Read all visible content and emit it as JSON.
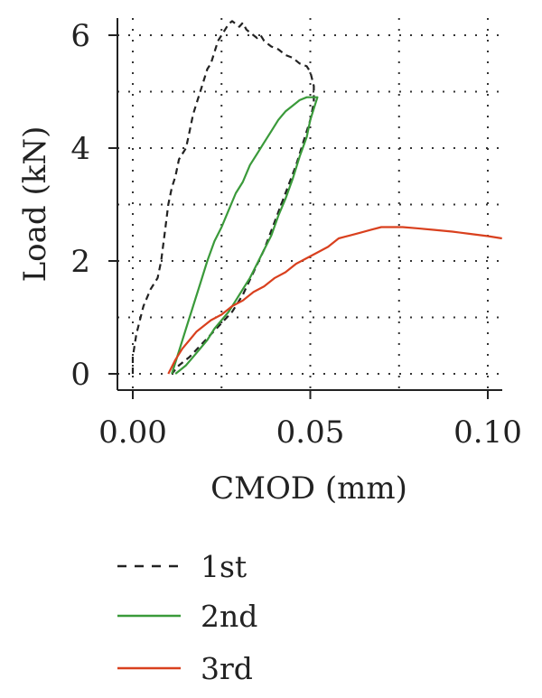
{
  "chart_data": {
    "type": "line",
    "xlabel": "CMOD (mm)",
    "ylabel": "Load (kN)",
    "xlim": [
      -0.004,
      0.104
    ],
    "ylim": [
      -0.3,
      6.3
    ],
    "x_ticks": [
      0.0,
      0.05,
      0.1
    ],
    "x_tick_labels": [
      "0.00",
      "0.05",
      "0.10"
    ],
    "y_ticks": [
      0,
      2,
      4,
      6
    ],
    "y_tick_labels": [
      "0",
      "2",
      "4",
      "6"
    ],
    "grid": "dotted",
    "legend_position": "below",
    "series": [
      {
        "name": "1st",
        "color": "#222222",
        "style": "dashed",
        "x": [
          0.0,
          0.0,
          0.001,
          0.003,
          0.005,
          0.007,
          0.008,
          0.009,
          0.01,
          0.011,
          0.012,
          0.013,
          0.015,
          0.016,
          0.017,
          0.018,
          0.019,
          0.02,
          0.021,
          0.022,
          0.023,
          0.024,
          0.026,
          0.027,
          0.028,
          0.029,
          0.03,
          0.031,
          0.032,
          0.033,
          0.034,
          0.035,
          0.036,
          0.037,
          0.038,
          0.039,
          0.041,
          0.043,
          0.045,
          0.047,
          0.049,
          0.05,
          0.051,
          0.051,
          0.05,
          0.048,
          0.046,
          0.043,
          0.04,
          0.037,
          0.034,
          0.031,
          0.028,
          0.025,
          0.022,
          0.019,
          0.016,
          0.013,
          0.011
        ],
        "y": [
          0.0,
          0.3,
          0.7,
          1.2,
          1.5,
          1.7,
          2.0,
          2.5,
          3.0,
          3.3,
          3.5,
          3.8,
          4.0,
          4.3,
          4.6,
          4.8,
          5.0,
          5.2,
          5.4,
          5.5,
          5.7,
          5.9,
          6.1,
          6.2,
          6.25,
          6.2,
          6.15,
          6.22,
          6.1,
          6.05,
          6.0,
          5.95,
          6.0,
          5.9,
          5.85,
          5.8,
          5.75,
          5.65,
          5.6,
          5.5,
          5.45,
          5.35,
          5.1,
          4.8,
          4.5,
          4.1,
          3.7,
          3.2,
          2.7,
          2.2,
          1.8,
          1.4,
          1.1,
          0.9,
          0.7,
          0.5,
          0.3,
          0.15,
          0.0
        ]
      },
      {
        "name": "2nd",
        "color": "#3a9a3a",
        "style": "solid",
        "x": [
          0.011,
          0.013,
          0.015,
          0.017,
          0.019,
          0.021,
          0.023,
          0.025,
          0.027,
          0.029,
          0.031,
          0.033,
          0.035,
          0.037,
          0.039,
          0.041,
          0.043,
          0.045,
          0.047,
          0.049,
          0.051,
          0.052,
          0.051,
          0.05,
          0.049,
          0.047,
          0.045,
          0.043,
          0.041,
          0.039,
          0.037,
          0.035,
          0.033,
          0.031,
          0.029,
          0.027,
          0.025,
          0.023,
          0.021,
          0.019,
          0.017,
          0.015,
          0.013,
          0.012
        ],
        "y": [
          0.0,
          0.4,
          0.8,
          1.2,
          1.6,
          2.0,
          2.35,
          2.6,
          2.9,
          3.2,
          3.4,
          3.7,
          3.9,
          4.1,
          4.3,
          4.5,
          4.65,
          4.75,
          4.85,
          4.9,
          4.9,
          4.9,
          4.7,
          4.5,
          4.2,
          3.85,
          3.45,
          3.1,
          2.8,
          2.45,
          2.2,
          1.95,
          1.7,
          1.5,
          1.3,
          1.1,
          0.95,
          0.8,
          0.6,
          0.45,
          0.3,
          0.15,
          0.05,
          0.0
        ]
      },
      {
        "name": "3rd",
        "color": "#d9401e",
        "style": "solid",
        "x": [
          0.01,
          0.012,
          0.014,
          0.016,
          0.018,
          0.02,
          0.022,
          0.025,
          0.028,
          0.031,
          0.034,
          0.037,
          0.04,
          0.043,
          0.046,
          0.049,
          0.052,
          0.055,
          0.058,
          0.061,
          0.064,
          0.067,
          0.07,
          0.073,
          0.076,
          0.08,
          0.085,
          0.09,
          0.095,
          0.1,
          0.104
        ],
        "y": [
          0.0,
          0.25,
          0.45,
          0.6,
          0.75,
          0.85,
          0.95,
          1.05,
          1.2,
          1.3,
          1.45,
          1.55,
          1.7,
          1.8,
          1.95,
          2.05,
          2.15,
          2.25,
          2.4,
          2.45,
          2.5,
          2.55,
          2.6,
          2.6,
          2.6,
          2.58,
          2.55,
          2.52,
          2.48,
          2.44,
          2.4
        ]
      }
    ]
  }
}
